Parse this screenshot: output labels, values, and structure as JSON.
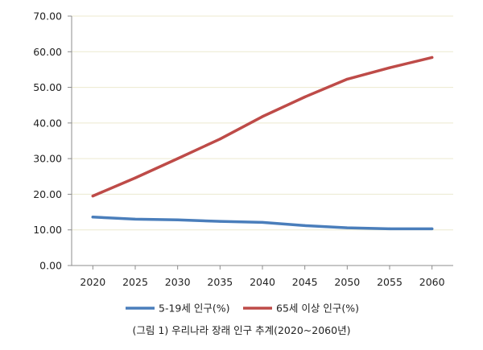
{
  "chart_data": {
    "type": "line",
    "caption": "(그림 1) 우리나라 장래 인구 추계(2020~2060년)",
    "x": [
      2020,
      2025,
      2030,
      2035,
      2040,
      2045,
      2050,
      2055,
      2060
    ],
    "xlim": [
      2017.5,
      2062.5
    ],
    "ylim": [
      0,
      70
    ],
    "yticks": [
      "0.00",
      "10.00",
      "20.00",
      "30.00",
      "40.00",
      "50.00",
      "60.00",
      "70.00"
    ],
    "grid": true,
    "legend_position": "bottom",
    "series": [
      {
        "name": "5-19세 인구(%)",
        "color": "#4a7ebb",
        "values": [
          13.6,
          13.0,
          12.8,
          12.4,
          12.1,
          11.2,
          10.6,
          10.3,
          10.3
        ]
      },
      {
        "name": "65세 이상 인구(%)",
        "color": "#be4b48",
        "values": [
          19.5,
          24.6,
          30.0,
          35.5,
          41.8,
          47.3,
          52.3,
          55.5,
          58.4
        ]
      }
    ]
  }
}
